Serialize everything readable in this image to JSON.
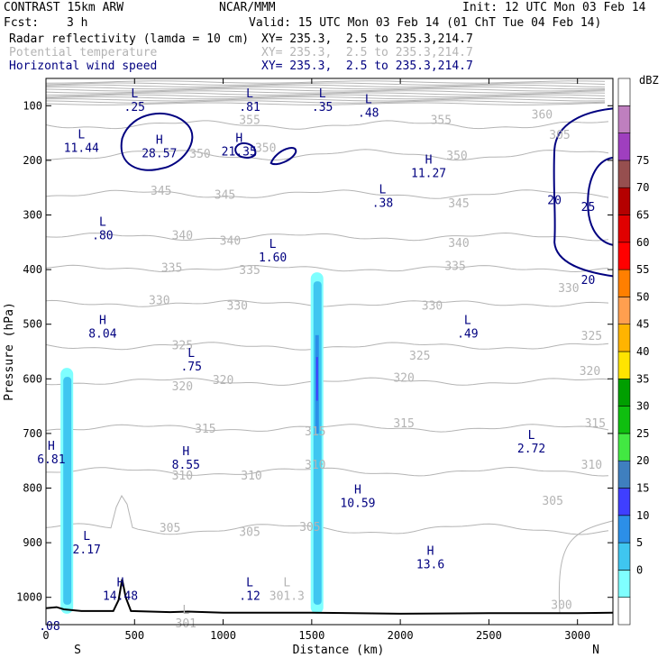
{
  "header": {
    "model": "CONTRAST 15km ARW",
    "org": "NCAR/MMM",
    "init": "Init: 12 UTC Mon 03 Feb 14",
    "fcst_label": "Fcst:",
    "fcst_value": "3 h",
    "valid": "Valid: 15 UTC Mon 03 Feb 14 (01 ChT Tue 04 Feb 14)",
    "fields": [
      {
        "name": "Radar reflectivity (lamda = 10 cm)",
        "xy": "XY= 235.3,  2.5 to 235.3,214.7",
        "color": "#000000"
      },
      {
        "name": "Potential temperature",
        "xy": "XY= 235.3,  2.5 to 235.3,214.7",
        "color": "#b4b4b4"
      },
      {
        "name": "Horizontal wind speed",
        "xy": "XY= 235.3,  2.5 to 235.3,214.7",
        "color": "#000080"
      }
    ]
  },
  "chart_data": {
    "type": "cross-section contour",
    "xlabel": "Distance (km)",
    "ylabel": "Pressure (hPa)",
    "xlim": [
      0,
      3200
    ],
    "ylim": [
      1050,
      50
    ],
    "x_ticks": [
      0,
      500,
      1000,
      1500,
      2000,
      2500,
      3000
    ],
    "y_ticks": [
      100,
      200,
      300,
      400,
      500,
      600,
      700,
      800,
      900,
      1000
    ],
    "x_end_labels": {
      "left": "S",
      "right": "N"
    },
    "theta_contours": {
      "color": "#b4b4b4",
      "labels": [
        {
          "text": "355",
          "x": 1150,
          "y": 125
        },
        {
          "text": "355",
          "x": 2230,
          "y": 125
        },
        {
          "text": "360",
          "x": 2800,
          "y": 115
        },
        {
          "text": "305",
          "x": 2900,
          "y": 152
        },
        {
          "text": "350",
          "x": 870,
          "y": 187
        },
        {
          "text": "350",
          "x": 1240,
          "y": 176
        },
        {
          "text": "350",
          "x": 2320,
          "y": 190
        },
        {
          "text": "345",
          "x": 650,
          "y": 255
        },
        {
          "text": "345",
          "x": 1010,
          "y": 262
        },
        {
          "text": "345",
          "x": 2330,
          "y": 278
        },
        {
          "text": "340",
          "x": 770,
          "y": 336
        },
        {
          "text": "340",
          "x": 1040,
          "y": 346
        },
        {
          "text": "340",
          "x": 2330,
          "y": 350
        },
        {
          "text": "335",
          "x": 710,
          "y": 396
        },
        {
          "text": "335",
          "x": 1150,
          "y": 400
        },
        {
          "text": "335",
          "x": 2310,
          "y": 392
        },
        {
          "text": "330",
          "x": 640,
          "y": 455
        },
        {
          "text": "330",
          "x": 1080,
          "y": 465
        },
        {
          "text": "330",
          "x": 2180,
          "y": 465
        },
        {
          "text": "330",
          "x": 2950,
          "y": 433
        },
        {
          "text": "325",
          "x": 770,
          "y": 538
        },
        {
          "text": "325",
          "x": 2110,
          "y": 557
        },
        {
          "text": "325",
          "x": 3080,
          "y": 520
        },
        {
          "text": "320",
          "x": 770,
          "y": 613
        },
        {
          "text": "320",
          "x": 1000,
          "y": 601
        },
        {
          "text": "320",
          "x": 2020,
          "y": 597
        },
        {
          "text": "320",
          "x": 3070,
          "y": 585
        },
        {
          "text": "315",
          "x": 900,
          "y": 690
        },
        {
          "text": "315",
          "x": 1520,
          "y": 695
        },
        {
          "text": "315",
          "x": 2020,
          "y": 680
        },
        {
          "text": "315",
          "x": 3100,
          "y": 680
        },
        {
          "text": "310",
          "x": 770,
          "y": 776
        },
        {
          "text": "310",
          "x": 1160,
          "y": 776
        },
        {
          "text": "310",
          "x": 1520,
          "y": 756
        },
        {
          "text": "310",
          "x": 3080,
          "y": 756
        },
        {
          "text": "305",
          "x": 700,
          "y": 872
        },
        {
          "text": "305",
          "x": 1150,
          "y": 879
        },
        {
          "text": "305",
          "x": 1490,
          "y": 870
        },
        {
          "text": "305",
          "x": 2860,
          "y": 822
        },
        {
          "text": "300",
          "x": 2910,
          "y": 1013
        }
      ]
    },
    "wind_speed_contours": {
      "color": "#000080",
      "labels": [
        {
          "text": "20",
          "x": 2870,
          "y": 272
        },
        {
          "text": "25",
          "x": 3060,
          "y": 284
        },
        {
          "text": "20",
          "x": 3060,
          "y": 418
        }
      ]
    },
    "extrema_labels": [
      {
        "kind": "L",
        "value": ".25",
        "x": 500,
        "y": 85,
        "color": "#000080"
      },
      {
        "kind": "L",
        "value": ".81",
        "x": 1150,
        "y": 85,
        "color": "#000080"
      },
      {
        "kind": "L",
        "value": ".35",
        "x": 1560,
        "y": 85,
        "color": "#000080"
      },
      {
        "kind": "L",
        "value": ".48",
        "x": 1820,
        "y": 95,
        "color": "#000080"
      },
      {
        "kind": "L",
        "value": "11.44",
        "x": 200,
        "y": 160,
        "color": "#000080"
      },
      {
        "kind": "H",
        "value": "28.57",
        "x": 640,
        "y": 170,
        "color": "#000080"
      },
      {
        "kind": "H",
        "value": "21.35",
        "x": 1090,
        "y": 166,
        "color": "#000080"
      },
      {
        "kind": "H",
        "value": "11.27",
        "x": 2160,
        "y": 206,
        "color": "#000080"
      },
      {
        "kind": "L",
        "value": ".38",
        "x": 1900,
        "y": 260,
        "color": "#000080"
      },
      {
        "kind": "L",
        "value": ".80",
        "x": 320,
        "y": 320,
        "color": "#000080"
      },
      {
        "kind": "L",
        "value": "1.60",
        "x": 1280,
        "y": 360,
        "color": "#000080"
      },
      {
        "kind": "H",
        "value": "8.04",
        "x": 320,
        "y": 500,
        "color": "#000080"
      },
      {
        "kind": "L",
        "value": ".49",
        "x": 2380,
        "y": 500,
        "color": "#000080"
      },
      {
        "kind": "L",
        "value": ".75",
        "x": 820,
        "y": 560,
        "color": "#000080"
      },
      {
        "kind": "L",
        "value": "2.72",
        "x": 2740,
        "y": 710,
        "color": "#000080"
      },
      {
        "kind": "H",
        "value": "6.81",
        "x": 30,
        "y": 730,
        "color": "#000080"
      },
      {
        "kind": "H",
        "value": "8.55",
        "x": 790,
        "y": 740,
        "color": "#000080"
      },
      {
        "kind": "H",
        "value": "10.59",
        "x": 1760,
        "y": 810,
        "color": "#000080"
      },
      {
        "kind": "L",
        "value": "2.17",
        "x": 230,
        "y": 895,
        "color": "#000080"
      },
      {
        "kind": "H",
        "value": "13.6",
        "x": 2170,
        "y": 922,
        "color": "#000080"
      },
      {
        "kind": "H",
        "value": "14.48",
        "x": 420,
        "y": 980,
        "color": "#000080"
      },
      {
        "kind": "L",
        "value": ".12",
        "x": 1150,
        "y": 980,
        "color": "#000080"
      },
      {
        "kind": "L",
        "value": "301.3",
        "x": 1360,
        "y": 980,
        "color": "#b4b4b4"
      },
      {
        "kind": "L",
        "value": "301",
        "x": 790,
        "y": 1030,
        "color": "#b4b4b4"
      },
      {
        "kind": "",
        "value": ".08",
        "x": 20,
        "y": 1035,
        "color": "#000080"
      }
    ],
    "colorbar": {
      "unit": "dBZ",
      "levels": [
        0,
        5,
        10,
        15,
        20,
        25,
        30,
        35,
        40,
        45,
        50,
        55,
        60,
        65,
        70,
        75
      ],
      "colors": [
        "#ffffff",
        "#7fffff",
        "#3fc6f0",
        "#2c8fe8",
        "#3f3fff",
        "#3f7fbf",
        "#42e842",
        "#0fbf0f",
        "#009f00",
        "#ffe400",
        "#ffb400",
        "#ff9f4f",
        "#ff7f00",
        "#ff0000",
        "#e00000",
        "#b40000",
        "#964f4f",
        "#9f3fbf",
        "#bf7fbf",
        "#ffffff"
      ]
    },
    "reflectivity_columns": [
      {
        "x_center": 118,
        "p_top": 580,
        "p_bottom": 1030
      },
      {
        "x_center": 1530,
        "p_top": 405,
        "p_bottom": 1030
      }
    ]
  }
}
